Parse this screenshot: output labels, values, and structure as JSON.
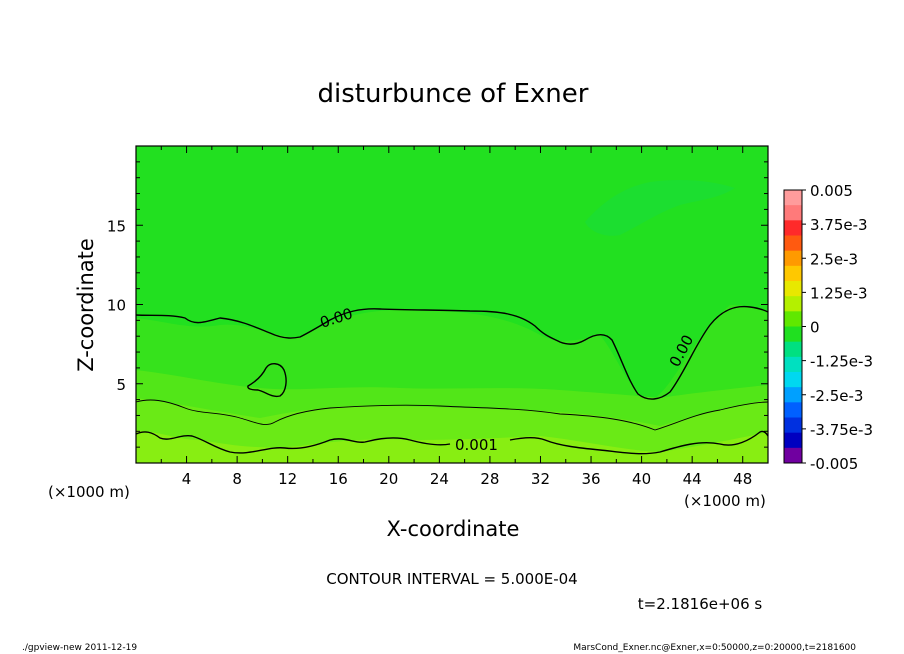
{
  "chart_data": {
    "type": "heatmap",
    "title": "disturbunce of Exner",
    "xlabel": "X-coordinate",
    "ylabel": "Z-coordinate",
    "x_unit": "(×1000 m)",
    "z_unit": "(×1000 m)",
    "xlim": [
      0,
      50
    ],
    "ylim": [
      0,
      20
    ],
    "x_ticks": [
      "4",
      "8",
      "12",
      "16",
      "20",
      "24",
      "28",
      "32",
      "36",
      "40",
      "44",
      "48"
    ],
    "y_ticks": [
      "5",
      "10",
      "15"
    ],
    "colorbar": {
      "min": -0.005,
      "max": 0.005,
      "labels": [
        "0.005",
        "3.75e-3",
        "2.5e-3",
        "1.25e-3",
        "0",
        "-1.25e-3",
        "-2.5e-3",
        "-3.75e-3",
        "-0.005"
      ]
    },
    "contour_labels": [
      "0.00",
      "0.00",
      "0.001"
    ],
    "contour_interval_text": "CONTOUR INTERVAL = 5.000E-04",
    "time_text": "t=2.1816e+06 s"
  },
  "footer": {
    "program": "./gpview-new  2011-12-19",
    "source": "MarsCond_Exner.nc@Exner,x=0:50000,z=0:20000,t=2181600"
  },
  "colors": {
    "field_top": "#22e020",
    "field_mid": "#44e418",
    "field_low": "#7eec14",
    "field_bottom": "#a0f010",
    "cool_patch": "#1cde30"
  }
}
